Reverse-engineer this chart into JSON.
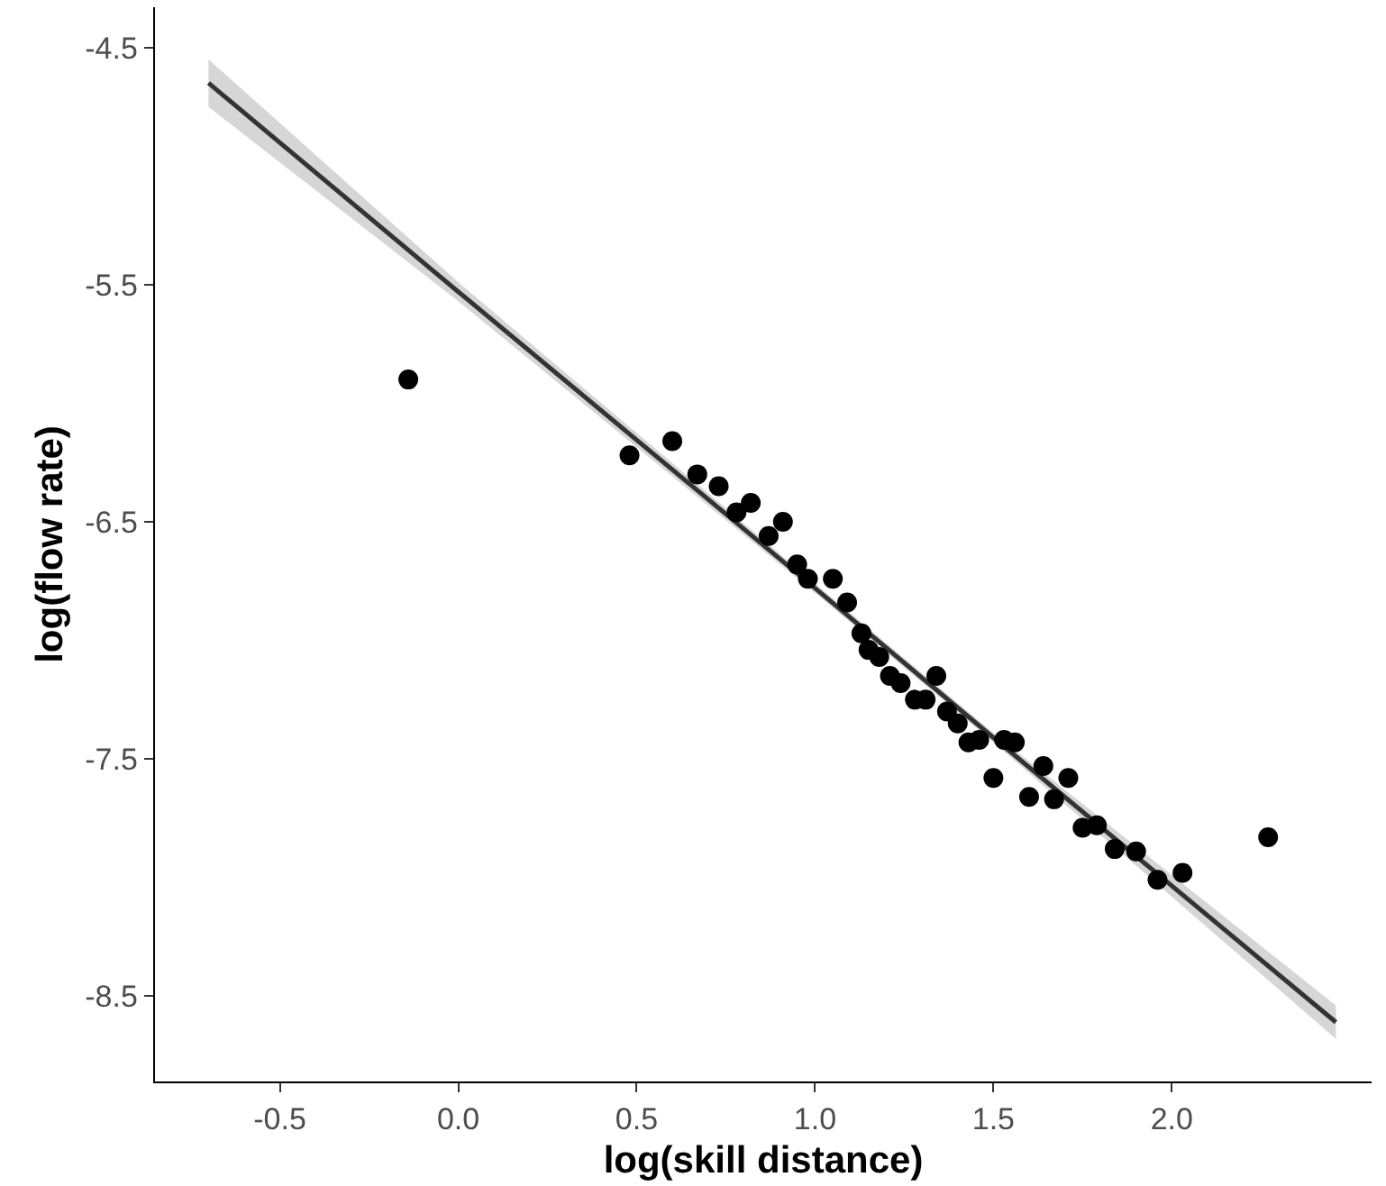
{
  "chart_data": {
    "type": "scatter",
    "xlabel": "log(skill distance)",
    "ylabel": "log(flow rate)",
    "xlim": [
      -0.85,
      2.56
    ],
    "ylim": [
      -8.86,
      -4.33
    ],
    "xticks": [
      -0.5,
      {
        "value": 0,
        "label": "0.0"
      },
      0.5,
      {
        "value": 1,
        "label": "1.0"
      },
      1.5,
      {
        "value": 2,
        "label": "2.0"
      }
    ],
    "yticks": [
      -4.5,
      -5.5,
      -6.5,
      -7.5,
      -8.5
    ],
    "grid": false,
    "series": [
      {
        "type": "line",
        "color": "#333333",
        "marker": "none",
        "line_style": "solid",
        "x": [
          -0.7,
          0.0,
          1.0,
          1.5,
          2.46
        ],
        "values": [
          -4.65,
          -5.53,
          -6.78,
          -7.41,
          -8.61
        ],
        "lower": [
          -4.75,
          -5.57,
          -6.8,
          -7.43,
          -8.68
        ],
        "upper": [
          -4.55,
          -5.49,
          -6.76,
          -7.39,
          -8.54
        ]
      },
      {
        "color": "#000000",
        "marker": "circle",
        "x": [
          -0.14,
          0.48,
          0.6,
          0.67,
          0.73,
          0.78,
          0.82,
          0.87,
          0.91,
          0.95,
          0.98,
          1.05,
          1.09,
          1.13,
          1.15,
          1.18,
          1.21,
          1.24,
          1.28,
          1.31,
          1.34,
          1.37,
          1.4,
          1.43,
          1.46,
          1.5,
          1.53,
          1.56,
          1.6,
          1.64,
          1.67,
          1.71,
          1.75,
          1.79,
          1.84,
          1.9,
          1.96,
          2.03,
          2.27
        ],
        "values": [
          -5.9,
          -6.22,
          -6.16,
          -6.3,
          -6.35,
          -6.46,
          -6.42,
          -6.56,
          -6.5,
          -6.68,
          -6.74,
          -6.74,
          -6.84,
          -6.97,
          -7.04,
          -7.07,
          -7.15,
          -7.18,
          -7.25,
          -7.25,
          -7.15,
          -7.3,
          -7.35,
          -7.43,
          -7.42,
          -7.58,
          -7.42,
          -7.43,
          -7.66,
          -7.53,
          -7.67,
          -7.58,
          -7.79,
          -7.78,
          -7.88,
          -7.89,
          -8.01,
          -7.98,
          -7.83
        ]
      }
    ]
  }
}
